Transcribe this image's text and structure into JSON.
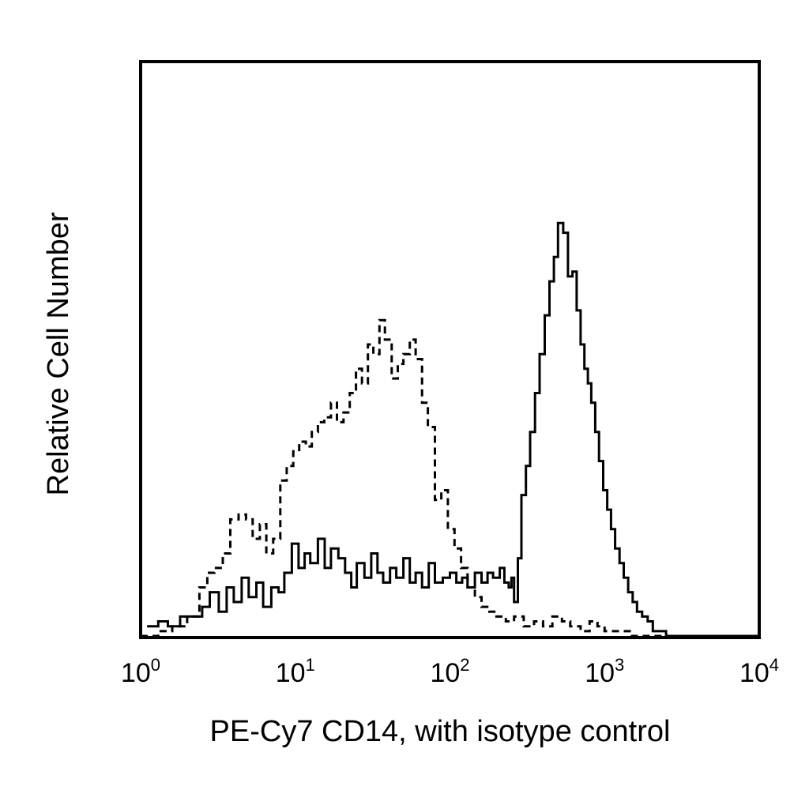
{
  "chart_data": {
    "type": "line",
    "title": "",
    "xlabel": "PE-Cy7 CD14, with isotype control",
    "ylabel": "Relative Cell Number",
    "x_scale": "log",
    "xlim": [
      1,
      10000
    ],
    "ylim": [
      0,
      100
    ],
    "grid": false,
    "legend": "none",
    "x_ticks": [
      {
        "base": "10",
        "exp": "0"
      },
      {
        "base": "10",
        "exp": "1"
      },
      {
        "base": "10",
        "exp": "2"
      },
      {
        "base": "10",
        "exp": "3"
      },
      {
        "base": "10",
        "exp": "4"
      }
    ],
    "series": [
      {
        "style": "solid",
        "color": "#000000",
        "x": [
          1.1,
          1.3,
          1.5,
          1.8,
          2.2,
          2.5,
          2.8,
          3.2,
          3.6,
          4.0,
          4.5,
          5.0,
          5.6,
          6.2,
          7.0,
          7.8,
          8.5,
          9.5,
          10.5,
          11.5,
          12.5,
          14,
          15.5,
          17,
          19,
          21,
          23,
          25,
          28,
          31,
          34,
          37,
          41,
          45,
          50,
          55,
          60,
          66,
          73,
          80,
          90,
          100,
          110,
          120,
          130,
          145,
          160,
          175,
          190,
          210,
          225,
          240,
          250,
          260,
          275,
          290,
          310,
          330,
          355,
          380,
          410,
          440,
          470,
          500,
          540,
          580,
          620,
          660,
          700,
          740,
          780,
          820,
          870,
          920,
          980,
          1040,
          1100,
          1170,
          1250,
          1330,
          1420,
          1520,
          1620,
          1750,
          1900,
          2050,
          2250,
          2500,
          2800,
          3200,
          3600,
          4000,
          4500,
          5000,
          7000,
          10000
        ],
        "values": [
          2,
          3,
          2,
          4,
          4,
          6,
          9,
          5,
          10,
          7,
          12,
          8,
          11,
          6,
          10,
          9,
          13,
          19,
          14,
          17,
          15,
          20,
          14,
          18,
          16,
          13,
          10,
          15,
          12,
          17,
          13,
          11,
          14,
          12,
          16,
          11,
          13,
          10,
          15,
          11,
          12,
          13,
          11,
          12,
          10,
          13,
          11,
          13,
          12,
          14,
          11,
          10,
          12,
          7,
          16,
          29,
          35,
          42,
          50,
          58,
          66,
          73,
          78,
          85,
          83,
          74,
          75,
          67,
          60,
          55,
          52,
          48,
          42,
          36,
          30,
          26,
          22,
          18,
          15,
          12,
          9,
          7,
          5,
          4,
          3,
          1,
          1,
          0,
          0,
          0,
          0,
          0,
          0,
          0,
          0,
          0
        ],
        "name": ""
      },
      {
        "style": "dashed",
        "color": "#000000",
        "x": [
          1.0,
          1.3,
          1.6,
          2.0,
          2.4,
          2.7,
          3.0,
          3.4,
          3.8,
          4.3,
          4.8,
          5.3,
          5.9,
          6.5,
          7.2,
          8.0,
          8.8,
          9.7,
          10.6,
          11.7,
          12.8,
          14,
          15.4,
          17,
          18.6,
          20.5,
          22.5,
          24.7,
          27,
          29.5,
          32,
          35,
          38,
          42,
          46,
          50,
          55,
          60,
          66,
          72,
          80,
          88,
          97,
          107,
          118,
          130,
          145,
          160,
          180,
          200,
          230,
          260,
          300,
          350,
          400,
          460,
          530,
          600,
          700,
          800,
          900,
          1000,
          1200,
          1500,
          2000,
          3000,
          5000,
          10000
        ],
        "values": [
          0,
          1,
          2,
          4,
          10,
          13,
          14,
          17,
          24,
          25,
          24,
          20,
          23,
          17,
          20,
          32,
          35,
          38,
          40,
          39,
          42,
          44,
          45,
          48,
          44,
          46,
          50,
          55,
          52,
          60,
          58,
          65,
          61,
          53,
          56,
          58,
          61,
          57,
          48,
          43,
          28,
          30,
          22,
          18,
          14,
          10,
          8,
          6,
          5,
          4,
          3,
          4,
          2,
          3,
          2,
          4,
          3,
          2,
          1,
          3,
          2,
          1,
          1,
          0,
          0,
          0,
          0,
          0
        ],
        "name": ""
      }
    ]
  }
}
